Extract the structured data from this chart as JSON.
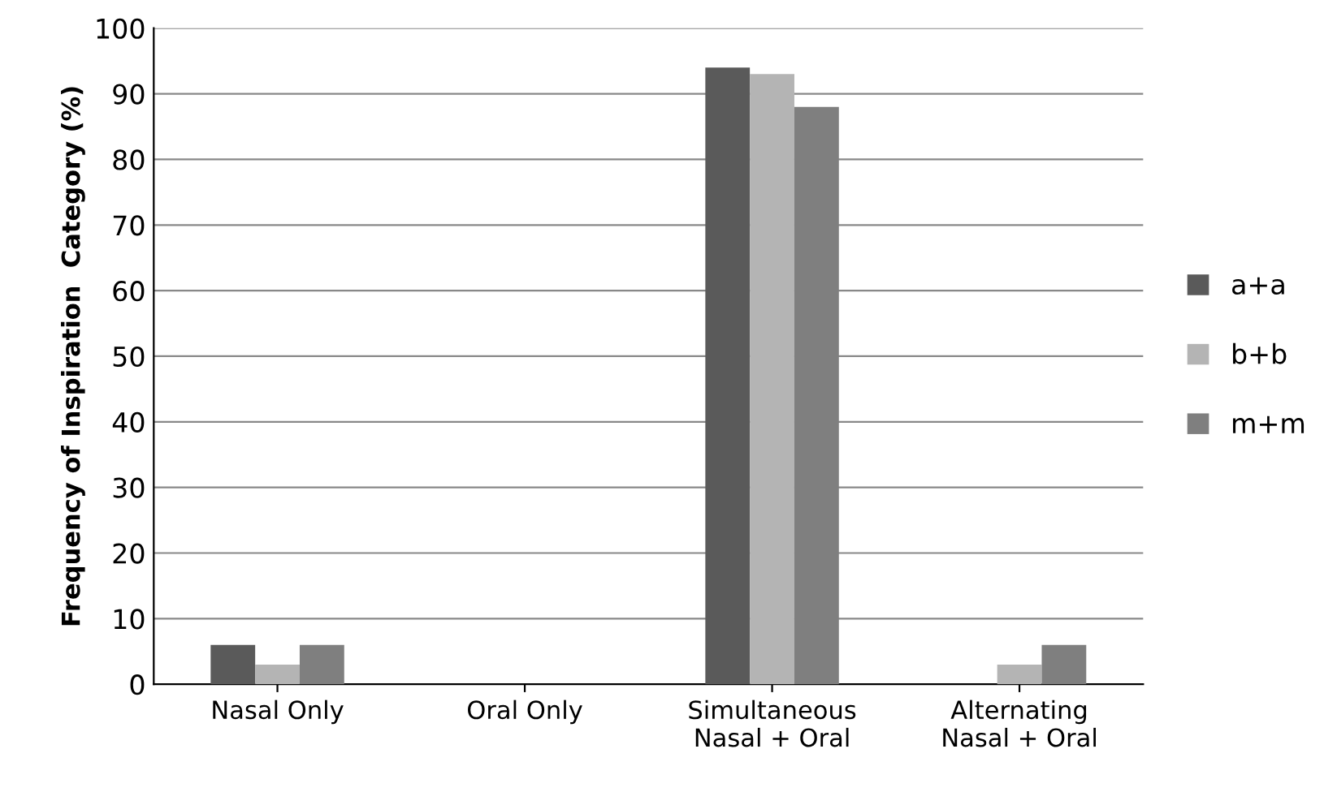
{
  "chart_data": {
    "type": "bar",
    "ylabel": "Frequency of Inspiration  Category (%)",
    "categories": [
      "Nasal Only",
      "Oral Only",
      "Simultaneous\nNasal + Oral",
      "Alternating\nNasal + Oral"
    ],
    "series": [
      {
        "name": "a+a",
        "color": "#5a5a5a",
        "values": [
          6,
          0,
          94,
          0
        ]
      },
      {
        "name": "b+b",
        "color": "#b4b4b4",
        "values": [
          3,
          0,
          93,
          3
        ]
      },
      {
        "name": "m+m",
        "color": "#7f7f7f",
        "values": [
          6,
          0,
          88,
          6
        ]
      }
    ],
    "ylim": [
      0,
      100
    ],
    "yticks": [
      0,
      10,
      20,
      30,
      40,
      50,
      60,
      70,
      80,
      90,
      100
    ],
    "grid": "y",
    "legend": "right"
  }
}
